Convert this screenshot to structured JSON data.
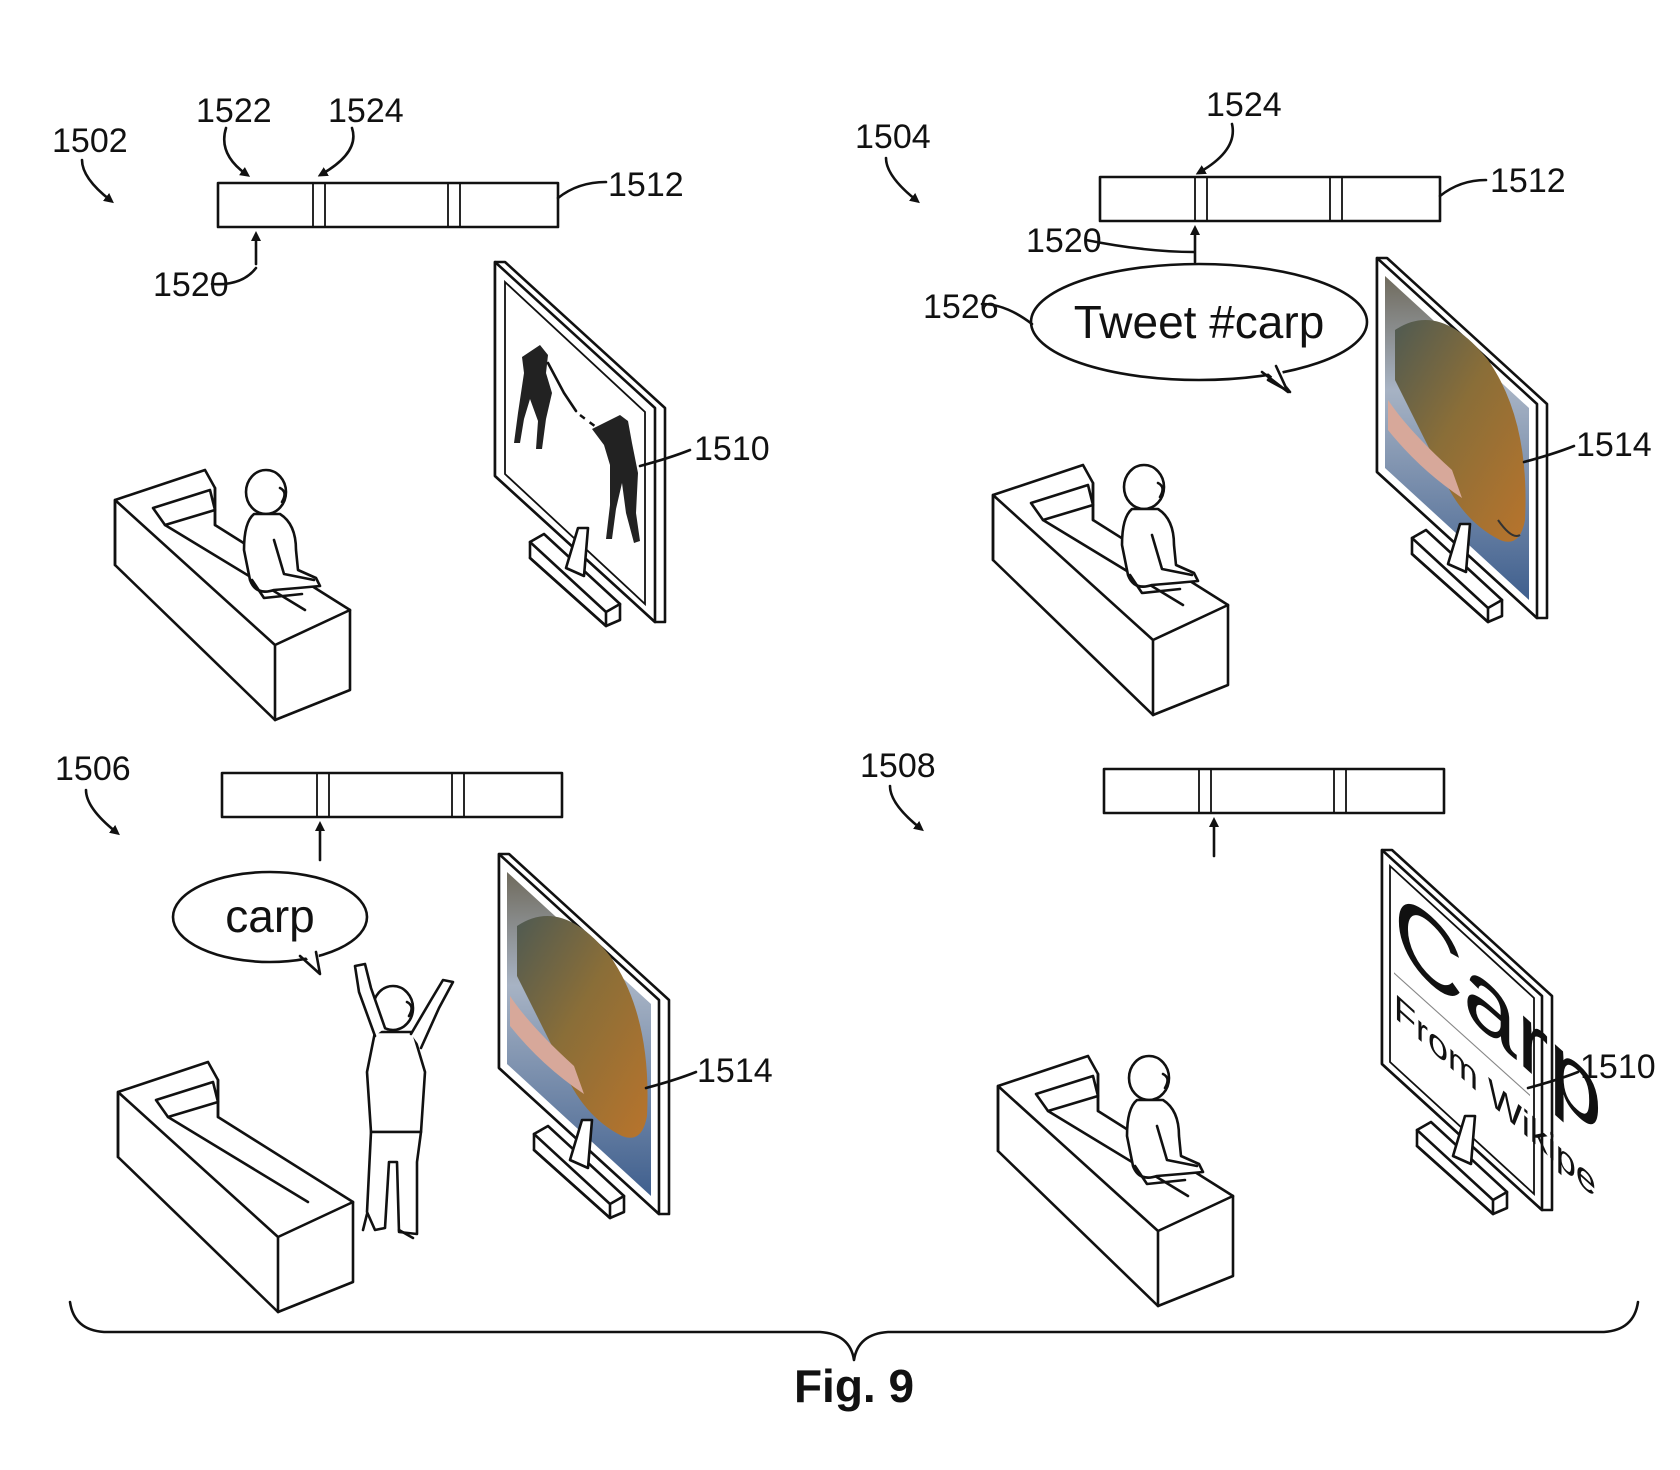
{
  "labels": {
    "p1502": "1502",
    "p1504": "1504",
    "p1506": "1506",
    "p1508": "1508",
    "r1522": "1522",
    "r1524a": "1524",
    "r1524b": "1524",
    "r1512a": "1512",
    "r1512b": "1512",
    "r1520a": "1520",
    "r1520b": "1520",
    "r1526": "1526",
    "r1510a": "1510",
    "r1510b": "1510",
    "r1514a": "1514",
    "r1514b": "1514"
  },
  "bubbles": {
    "tweet": "Tweet #carp",
    "carp": "carp"
  },
  "screen_text": {
    "title": "Carp",
    "subtitle": "From Wikipe"
  },
  "caption": "Fig. 9"
}
